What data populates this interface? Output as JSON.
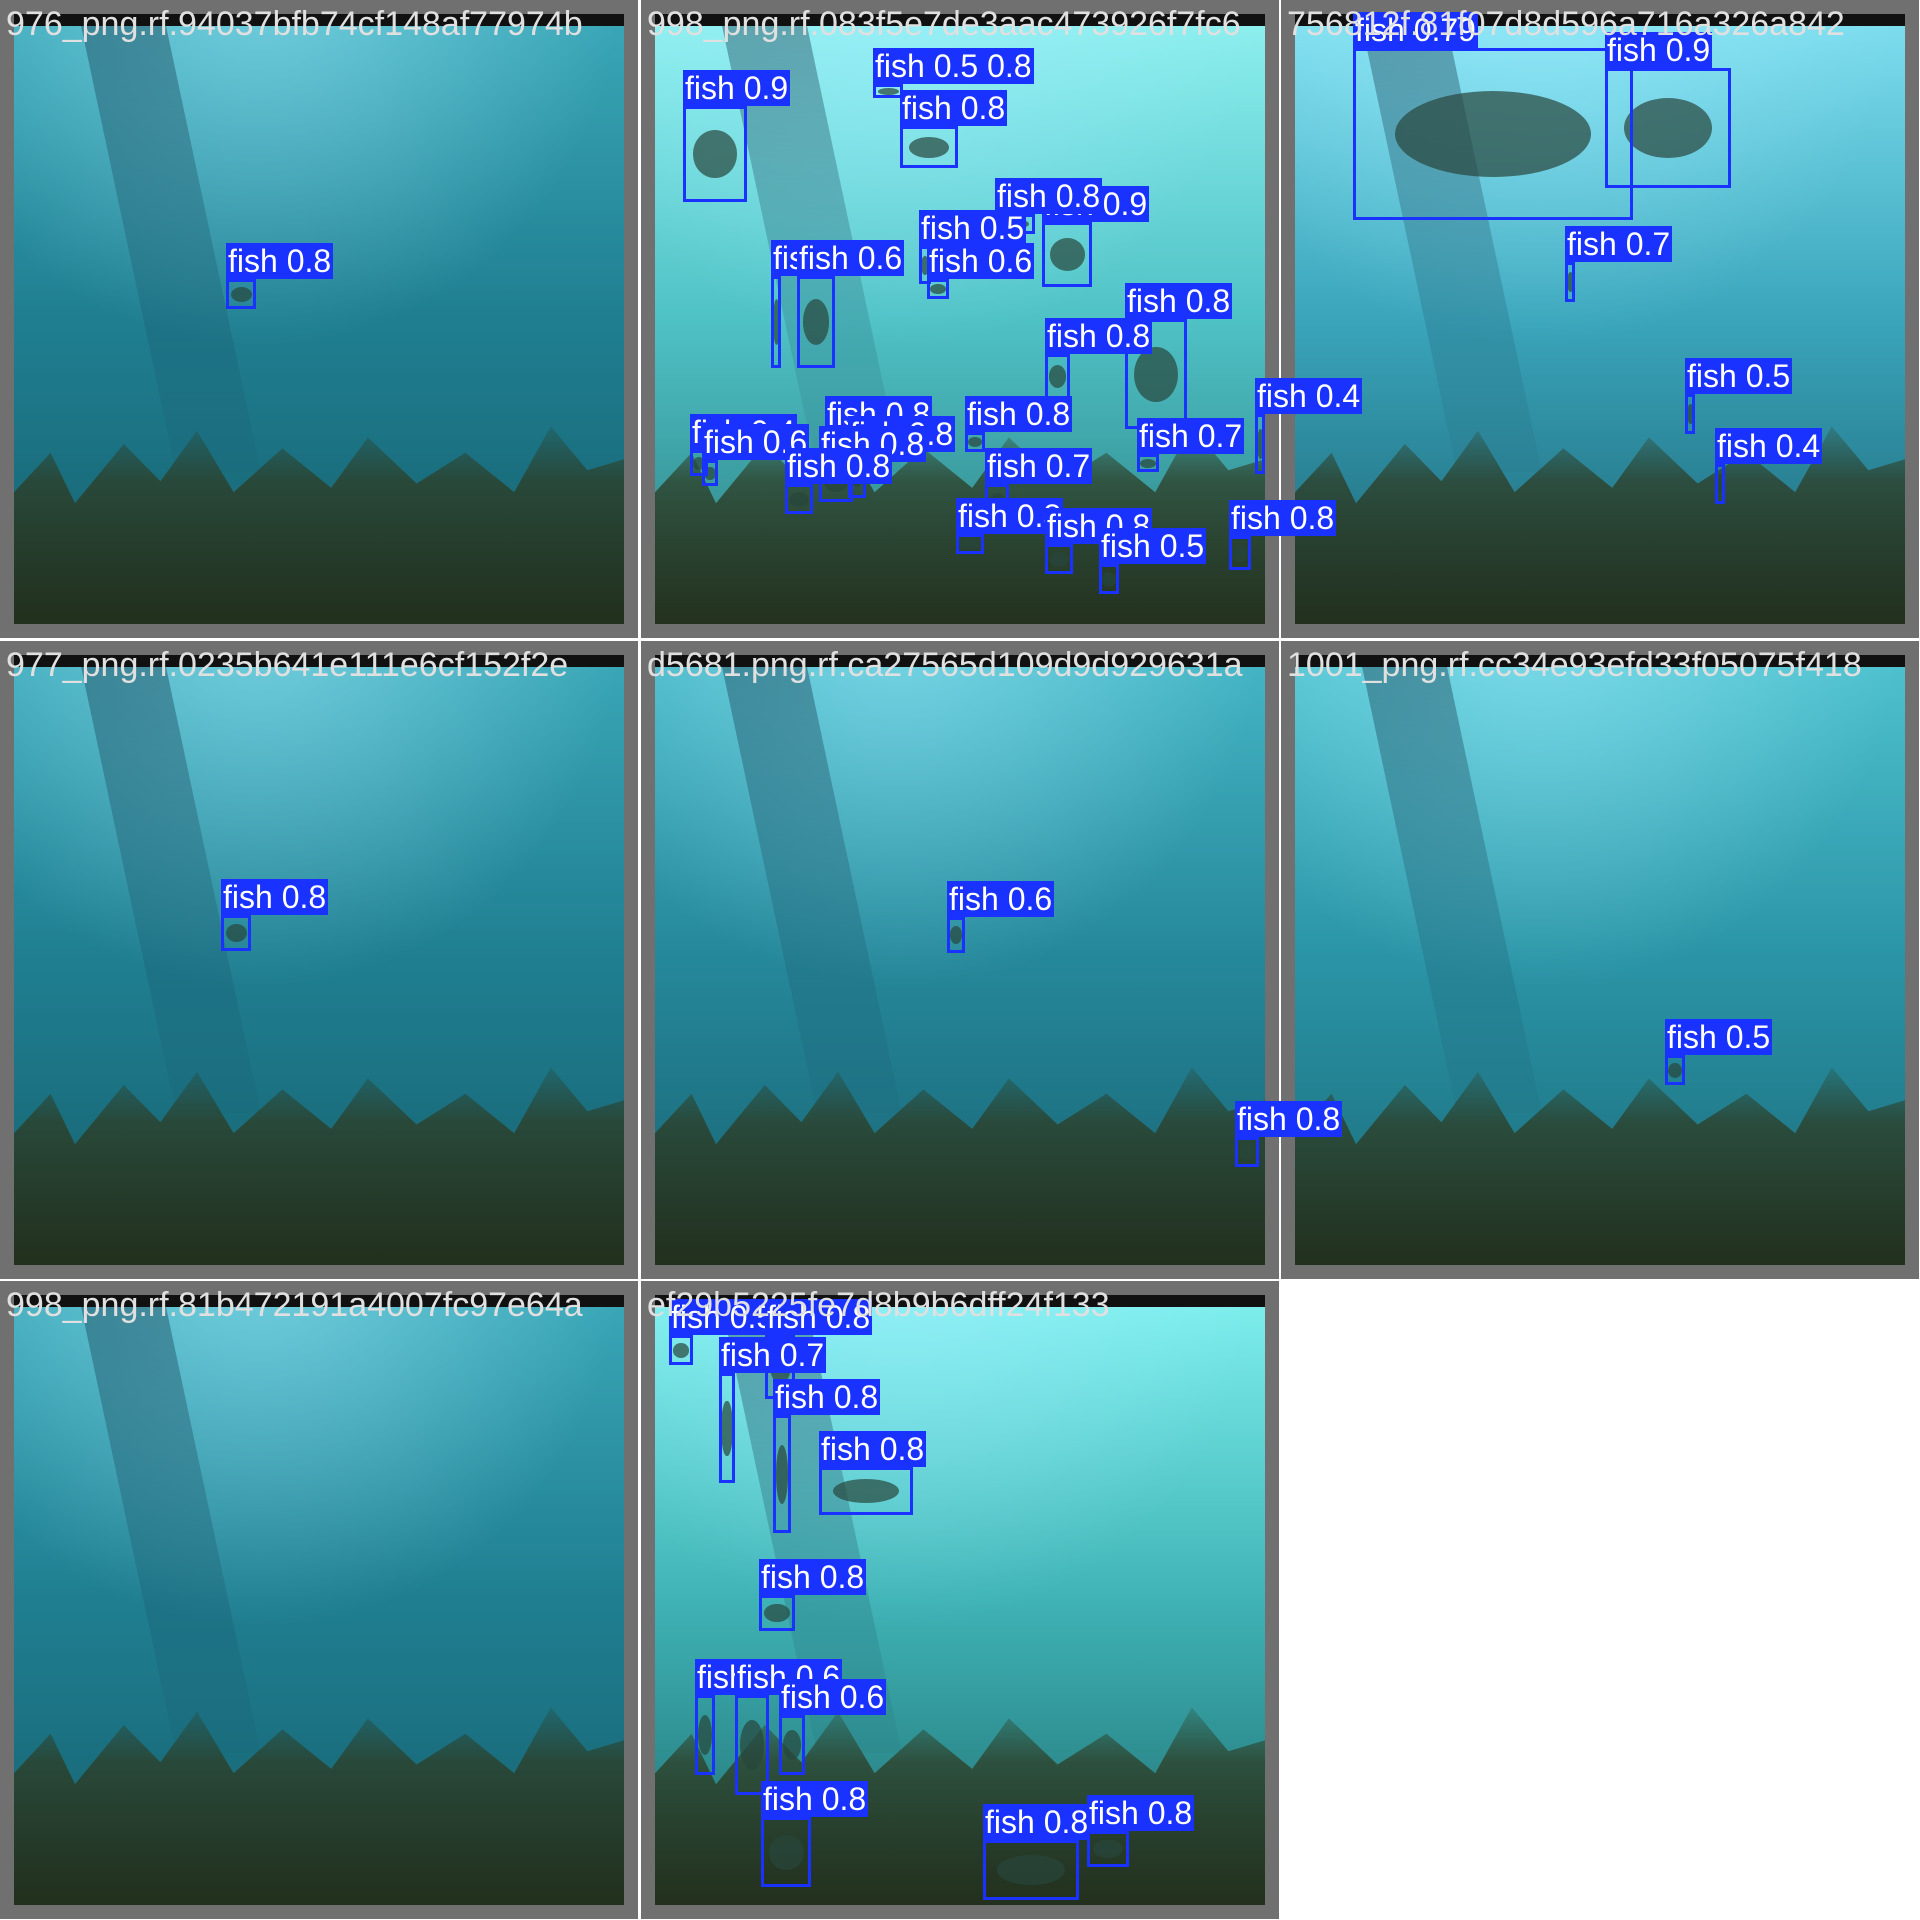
{
  "colors": {
    "box": "#1a32ff",
    "label_text": "#ffffff",
    "frame": "#707070",
    "title_text": "#e0e0e0"
  },
  "tiles": [
    {
      "title": "976_png.rf.94037bfb74cf148af77974b",
      "water": [
        "#3aa7b8",
        "#1f7f91",
        "#16606e"
      ],
      "dets": [
        {
          "label": "fish 0.8"
        }
      ]
    },
    {
      "title": "998_png.rf.083f5e7de3aac473926f7fc6",
      "water": [
        "#8ff0ef",
        "#4fc2c6",
        "#2a7d80"
      ],
      "dets": [
        {
          "label": "fish 0.9"
        },
        {
          "label": "fish 0.5 0.8"
        },
        {
          "label": "fish 0.8"
        },
        {
          "label": "fish 0.9"
        },
        {
          "label": "fish 0.8"
        },
        {
          "label": "fish 0.5"
        },
        {
          "label": "fish 0.6"
        },
        {
          "label": "fish 0.4"
        },
        {
          "label": "fish 0.6"
        },
        {
          "label": "fish 0.8"
        },
        {
          "label": "fish 0.8"
        },
        {
          "label": "fish 0.8"
        },
        {
          "label": "fish 0.8"
        },
        {
          "label": "fish 0.4"
        },
        {
          "label": "fish 0.6"
        },
        {
          "label": "fish 0.8"
        },
        {
          "label": "fish 0.8"
        },
        {
          "label": "fish 0.8"
        },
        {
          "label": "fish 0.7"
        },
        {
          "label": "fish 0.7"
        },
        {
          "label": "fish 0.8"
        },
        {
          "label": "fish 0.8"
        },
        {
          "label": "fish 0.5"
        },
        {
          "label": "fish 0.4"
        },
        {
          "label": "fish 0.8"
        }
      ]
    },
    {
      "title": "756812f.81f07d8d596a716a326a842",
      "water": [
        "#7fdff0",
        "#3aa5bb",
        "#1c6474"
      ],
      "dets": [
        {
          "label": "fish 0.79"
        },
        {
          "label": "fish 0.9"
        },
        {
          "label": "fish 0.7"
        },
        {
          "label": "fish 0.5"
        },
        {
          "label": "fish 0.4"
        }
      ]
    },
    {
      "title": "977_png.rf.0235b641e111e6cf152f2e",
      "water": [
        "#3aa7b8",
        "#1f7f91",
        "#16606e"
      ],
      "dets": [
        {
          "label": "fish 0.8"
        }
      ]
    },
    {
      "title": "d5681.png.rf.ca27565d109d9d929631a",
      "water": [
        "#45b6c6",
        "#25889a",
        "#176272"
      ],
      "dets": [
        {
          "label": "fish 0.6"
        },
        {
          "label": "fish 0.8"
        }
      ]
    },
    {
      "title": "1001_png.rf.cc34e93efd33f05075f418",
      "water": [
        "#4fc2cf",
        "#2a94a6",
        "#1a6a78"
      ],
      "dets": [
        {
          "label": "fish 0.5"
        }
      ]
    },
    {
      "title": "998_png.rf.81b472191a4007fc97e64a",
      "water": [
        "#3aa7b8",
        "#1f7f91",
        "#16606e"
      ],
      "dets": []
    },
    {
      "title": "ef29b5225fe7d8b9b6dff24f133",
      "water": [
        "#7ff0ee",
        "#3fb3b6",
        "#1f6c6e"
      ],
      "dets": [
        {
          "label": "fish 0.5"
        },
        {
          "label": "fish 0.8"
        },
        {
          "label": "fish 0.7"
        },
        {
          "label": "fish 0.8"
        },
        {
          "label": "fish 0.8"
        },
        {
          "label": "fish 0.8"
        },
        {
          "label": "fish 0.8"
        },
        {
          "label": "fish 0.6"
        },
        {
          "label": "fish 0.6"
        },
        {
          "label": "fish 0.8"
        },
        {
          "label": "fish 0.8"
        },
        {
          "label": "fish 0.8"
        }
      ]
    }
  ]
}
